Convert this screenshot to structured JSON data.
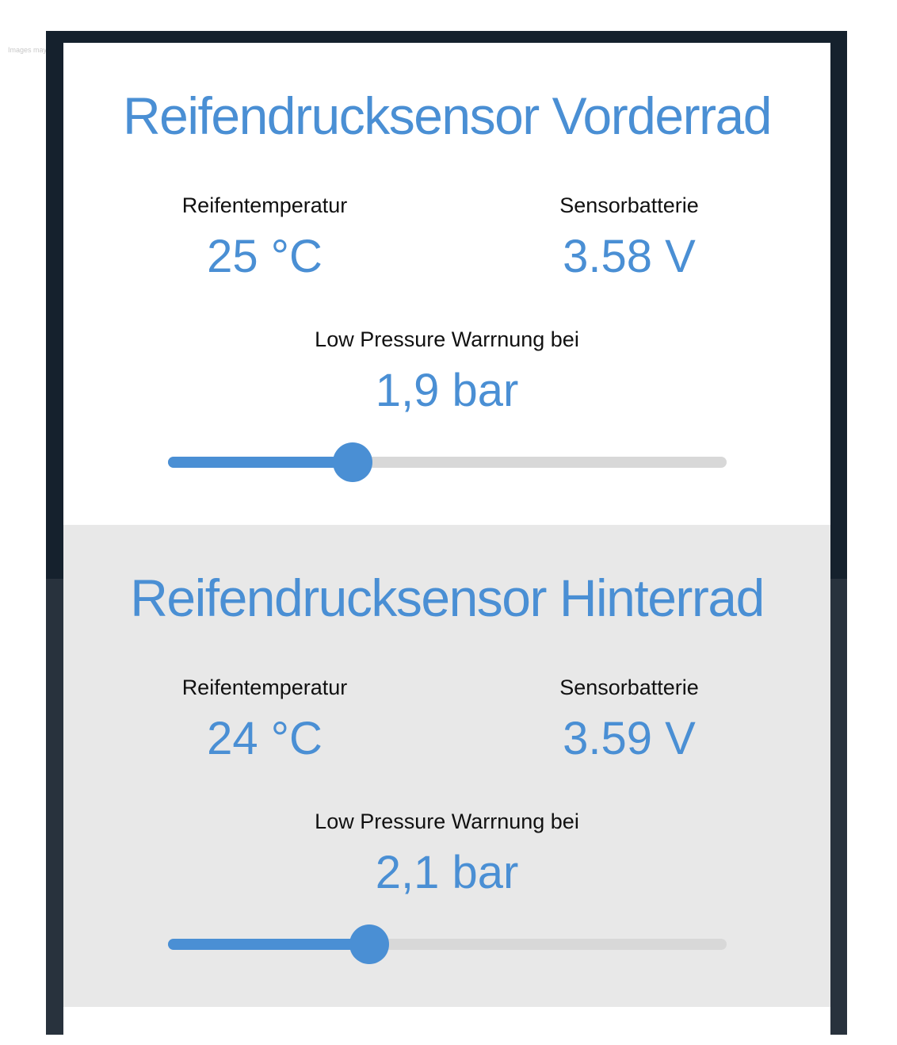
{
  "watermark": "Images may differ from original",
  "accent": "#4a8fd4",
  "sensors": [
    {
      "title": "Reifendrucksensor Vorderrad",
      "temp_label": "Reifentemperatur",
      "temp_value": "25 °C",
      "battery_label": "Sensorbatterie",
      "battery_value": "3.58 V",
      "warning_label": "Low Pressure Warrnung bei",
      "warning_value": "1,9 bar",
      "slider_fraction": 0.33
    },
    {
      "title": "Reifendrucksensor Hinterrad",
      "temp_label": "Reifentemperatur",
      "temp_value": "24 °C",
      "battery_label": "Sensorbatterie",
      "battery_value": "3.59 V",
      "warning_label": "Low Pressure Warrnung bei",
      "warning_value": "2,1 bar",
      "slider_fraction": 0.36
    }
  ]
}
